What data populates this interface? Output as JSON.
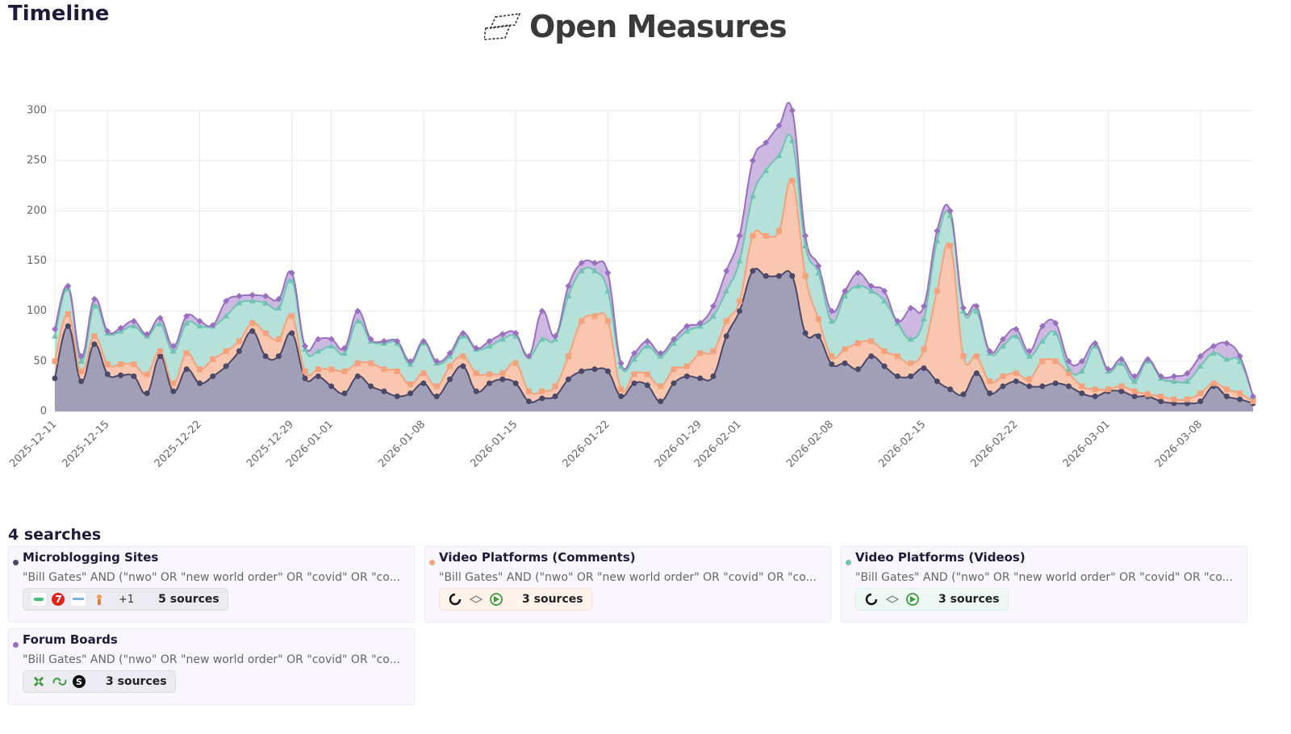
{
  "header": {
    "title": "Timeline",
    "brand": "Open Measures"
  },
  "chart_data": {
    "type": "area",
    "stacked": true,
    "x": [
      "2025-12-11",
      "2025-12-12",
      "2025-12-13",
      "2025-12-14",
      "2025-12-15",
      "2025-12-16",
      "2025-12-17",
      "2025-12-18",
      "2025-12-19",
      "2025-12-20",
      "2025-12-21",
      "2025-12-22",
      "2025-12-23",
      "2025-12-24",
      "2025-12-25",
      "2025-12-26",
      "2025-12-27",
      "2025-12-28",
      "2025-12-29",
      "2025-12-30",
      "2025-12-31",
      "2026-01-01",
      "2026-01-02",
      "2026-01-03",
      "2026-01-04",
      "2026-01-05",
      "2026-01-06",
      "2026-01-07",
      "2026-01-08",
      "2026-01-09",
      "2026-01-10",
      "2026-01-11",
      "2026-01-12",
      "2026-01-13",
      "2026-01-14",
      "2026-01-15",
      "2026-01-16",
      "2026-01-17",
      "2026-01-18",
      "2026-01-19",
      "2026-01-20",
      "2026-01-21",
      "2026-01-22",
      "2026-01-23",
      "2026-01-24",
      "2026-01-25",
      "2026-01-26",
      "2026-01-27",
      "2026-01-28",
      "2026-01-29",
      "2026-01-30",
      "2026-01-31",
      "2026-02-01",
      "2026-02-02",
      "2026-02-03",
      "2026-02-04",
      "2026-02-05",
      "2026-02-06",
      "2026-02-07",
      "2026-02-08",
      "2026-02-09",
      "2026-02-10",
      "2026-02-11",
      "2026-02-12",
      "2026-02-13",
      "2026-02-14",
      "2026-02-15",
      "2026-02-16",
      "2026-02-17",
      "2026-02-18",
      "2026-02-19",
      "2026-02-20",
      "2026-02-21",
      "2026-02-22",
      "2026-02-23",
      "2026-02-24",
      "2026-02-25",
      "2026-02-26",
      "2026-02-27",
      "2026-02-28",
      "2026-03-01",
      "2026-03-02",
      "2026-03-03",
      "2026-03-04",
      "2026-03-05",
      "2026-03-06",
      "2026-03-07",
      "2026-03-08",
      "2026-03-09",
      "2026-03-10",
      "2026-03-11",
      "2026-03-12"
    ],
    "xlim": [
      "2025-12-11",
      "2026-03-12"
    ],
    "xticks": [
      "2025-12-11",
      "2025-12-15",
      "2025-12-22",
      "2025-12-29",
      "2026-01-01",
      "2026-01-08",
      "2026-01-15",
      "2026-01-22",
      "2026-01-29",
      "2026-02-01",
      "2026-02-08",
      "2026-02-15",
      "2026-02-22",
      "2026-03-01",
      "2026-03-08"
    ],
    "ylim": [
      0,
      300
    ],
    "yticks": [
      0,
      50,
      100,
      150,
      200,
      250,
      300
    ],
    "grid": true,
    "series": [
      {
        "name": "Microblogging Sites",
        "color": "#4a4868",
        "fill": "#a19fb7",
        "marker": "circle",
        "values": [
          33,
          85,
          30,
          67,
          37,
          36,
          35,
          18,
          55,
          20,
          42,
          28,
          35,
          45,
          60,
          80,
          55,
          55,
          78,
          33,
          35,
          25,
          18,
          35,
          25,
          20,
          15,
          18,
          28,
          15,
          32,
          45,
          20,
          28,
          32,
          28,
          10,
          13,
          15,
          32,
          40,
          42,
          40,
          15,
          28,
          26,
          10,
          28,
          35,
          33,
          35,
          75,
          100,
          140,
          135,
          135,
          135,
          78,
          75,
          47,
          48,
          42,
          55,
          45,
          35,
          35,
          43,
          30,
          22,
          17,
          38,
          18,
          25,
          30,
          25,
          25,
          28,
          25,
          18,
          15,
          20,
          20,
          15,
          15,
          10,
          8,
          8,
          10,
          25,
          15,
          12,
          8
        ]
      },
      {
        "name": "Video Platforms (Comments)",
        "color": "#f5a27c",
        "fill": "#f9c7af",
        "marker": "rect",
        "values": [
          17,
          12,
          10,
          8,
          10,
          11,
          12,
          19,
          5,
          8,
          16,
          14,
          17,
          15,
          10,
          8,
          23,
          17,
          17,
          7,
          7,
          17,
          22,
          13,
          23,
          22,
          25,
          9,
          10,
          10,
          13,
          10,
          18,
          9,
          6,
          20,
          10,
          7,
          10,
          23,
          50,
          53,
          50,
          7,
          9,
          11,
          15,
          14,
          10,
          25,
          25,
          15,
          10,
          35,
          40,
          45,
          95,
          57,
          17,
          8,
          14,
          26,
          15,
          15,
          20,
          13,
          19,
          90,
          143,
          38,
          17,
          12,
          10,
          8,
          7,
          25,
          22,
          13,
          7,
          7,
          2,
          5,
          5,
          2,
          5,
          4,
          4,
          8,
          3,
          7,
          6,
          2
        ]
      },
      {
        "name": "Video Platforms (Videos)",
        "color": "#6ec3b3",
        "fill": "#b6e1d9",
        "marker": "triangle",
        "values": [
          25,
          25,
          10,
          30,
          31,
          33,
          38,
          38,
          27,
          32,
          30,
          43,
          33,
          35,
          38,
          22,
          30,
          31,
          35,
          22,
          18,
          23,
          18,
          42,
          22,
          26,
          28,
          20,
          30,
          23,
          10,
          20,
          24,
          28,
          34,
          27,
          35,
          52,
          47,
          60,
          50,
          45,
          30,
          23,
          15,
          28,
          30,
          26,
          35,
          27,
          35,
          30,
          40,
          40,
          65,
          75,
          40,
          30,
          46,
          35,
          53,
          57,
          50,
          50,
          33,
          24,
          30,
          50,
          30,
          45,
          45,
          28,
          30,
          37,
          23,
          20,
          28,
          4,
          15,
          43,
          18,
          23,
          10,
          33,
          18,
          18,
          18,
          27,
          30,
          30,
          32,
          5
        ]
      },
      {
        "name": "Forum Boards",
        "color": "#9a6fbf",
        "fill": "#cdb8e2",
        "marker": "diamond",
        "values": [
          7,
          3,
          5,
          7,
          2,
          3,
          5,
          2,
          6,
          5,
          7,
          5,
          1,
          15,
          7,
          6,
          7,
          9,
          8,
          3,
          12,
          7,
          5,
          10,
          2,
          2,
          2,
          3,
          2,
          2,
          3,
          3,
          1,
          5,
          5,
          3,
          0,
          28,
          3,
          10,
          8,
          8,
          18,
          3,
          6,
          5,
          3,
          4,
          5,
          3,
          10,
          20,
          25,
          35,
          28,
          30,
          30,
          10,
          7,
          10,
          5,
          13,
          5,
          10,
          2,
          31,
          13,
          10,
          5,
          3,
          5,
          2,
          7,
          7,
          5,
          15,
          10,
          8,
          10,
          3,
          2,
          4,
          5,
          2,
          2,
          5,
          8,
          10,
          7,
          16,
          5,
          0
        ]
      }
    ]
  },
  "searches": {
    "title": "4 searches",
    "items": [
      {
        "query": "\"Bill Gates\" AND (\"nwo\" OR \"new world order\" OR \"covid\" OR \"co...",
        "extra": "+1",
        "sources": "5 sources"
      },
      {
        "query": "\"Bill Gates\" AND (\"nwo\" OR \"new world order\" OR \"covid\" OR \"co...",
        "sources": "3 sources"
      },
      {
        "query": "\"Bill Gates\" AND (\"nwo\" OR \"new world order\" OR \"covid\" OR \"co...",
        "sources": "3 sources"
      },
      {
        "query": "\"Bill Gates\" AND (\"nwo\" OR \"new world order\" OR \"covid\" OR \"co...",
        "sources": "3 sources"
      }
    ]
  }
}
